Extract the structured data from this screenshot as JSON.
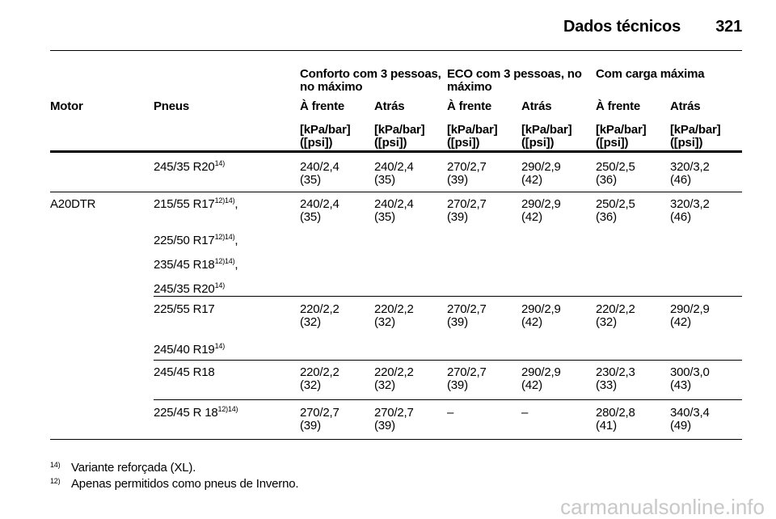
{
  "header": {
    "title": "Dados técnicos",
    "page": "321"
  },
  "table": {
    "group_headers": [
      "Conforto com 3 pessoas, no máximo",
      "ECO com 3 pessoas, no máximo",
      "Com carga máxima"
    ],
    "columns": [
      "Motor",
      "Pneus",
      "À frente",
      "Atrás",
      "À frente",
      "Atrás",
      "À frente",
      "Atrás"
    ],
    "units": [
      [
        "[kPa/bar]",
        "([psi])"
      ],
      [
        "[kPa/bar]",
        "([psi])"
      ],
      [
        "[kPa/bar]",
        "([psi])"
      ],
      [
        "[kPa/bar]",
        "([psi])"
      ],
      [
        "[kPa/bar]",
        "([psi])"
      ],
      [
        "[kPa/bar]",
        "([psi])"
      ]
    ],
    "groups": [
      {
        "tires": [
          {
            "text": "245/35 R20",
            "sup": "14)"
          }
        ],
        "values": [
          [
            "240/2,4",
            "(35)"
          ],
          [
            "240/2,4",
            "(35)"
          ],
          [
            "270/2,7",
            "(39)"
          ],
          [
            "290/2,9",
            "(42)"
          ],
          [
            "250/2,5",
            "(36)"
          ],
          [
            "320/3,2",
            "(46)"
          ]
        ]
      },
      {
        "motor": "A20DTR",
        "tires": [
          {
            "text": "215/55 R17",
            "sup": "12)14)",
            "suffix": ","
          },
          {
            "text": "225/50 R17",
            "sup": "12)14)",
            "suffix": ","
          },
          {
            "text": "235/45 R18",
            "sup": "12)14)",
            "suffix": ","
          },
          {
            "text": "245/35 R20",
            "sup": "14)"
          }
        ],
        "values": [
          [
            "240/2,4",
            "(35)"
          ],
          [
            "240/2,4",
            "(35)"
          ],
          [
            "270/2,7",
            "(39)"
          ],
          [
            "290/2,9",
            "(42)"
          ],
          [
            "250/2,5",
            "(36)"
          ],
          [
            "320/3,2",
            "(46)"
          ]
        ]
      },
      {
        "tires": [
          {
            "text": "225/55 R17"
          },
          {
            "text": "245/40 R19",
            "sup": "14)"
          }
        ],
        "values": [
          [
            "220/2,2",
            "(32)"
          ],
          [
            "220/2,2",
            "(32)"
          ],
          [
            "270/2,7",
            "(39)"
          ],
          [
            "290/2,9",
            "(42)"
          ],
          [
            "220/2,2",
            "(32)"
          ],
          [
            "290/2,9",
            "(42)"
          ]
        ]
      },
      {
        "tires": [
          {
            "text": "245/45 R18"
          }
        ],
        "values": [
          [
            "220/2,2",
            "(32)"
          ],
          [
            "220/2,2",
            "(32)"
          ],
          [
            "270/2,7",
            "(39)"
          ],
          [
            "290/2,9",
            "(42)"
          ],
          [
            "230/2,3",
            "(33)"
          ],
          [
            "300/3,0",
            "(43)"
          ]
        ]
      },
      {
        "tires": [
          {
            "text": "225/45 R 18",
            "sup": "12)14)"
          }
        ],
        "values": [
          [
            "270/2,7",
            "(39)"
          ],
          [
            "270/2,7",
            "(39)"
          ],
          [
            "–"
          ],
          [
            "–"
          ],
          [
            "280/2,8",
            "(41)"
          ],
          [
            "340/3,4",
            "(49)"
          ]
        ]
      }
    ]
  },
  "footnotes": [
    {
      "mark": "14)",
      "text": "Variante reforçada (XL)."
    },
    {
      "mark": "12)",
      "text": "Apenas permitidos como pneus de Inverno."
    }
  ],
  "watermark": "carmanualsonline.info"
}
